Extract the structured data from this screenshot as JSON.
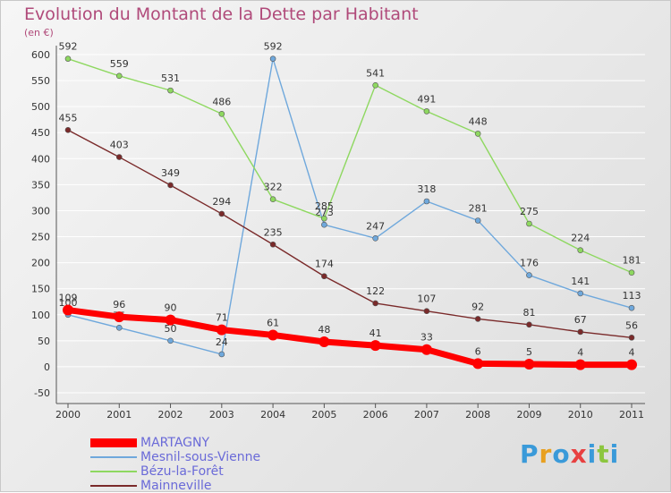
{
  "header": {
    "title": "Evolution du Montant de la Dette par Habitant",
    "unit": "(en €)"
  },
  "brand": {
    "letters": [
      "P",
      "r",
      "o",
      "x",
      "i",
      "t",
      "i"
    ],
    "colors": [
      "#3a9ad9",
      "#e8a020",
      "#3a9ad9",
      "#e84040",
      "#3a9ad9",
      "#8cc63f",
      "#3a9ad9"
    ]
  },
  "chart_data": {
    "type": "line",
    "title": "Evolution du Montant de la Dette par Habitant",
    "ylabel": "(en €)",
    "xlabel": "",
    "x": [
      "2000",
      "2001",
      "2002",
      "2003",
      "2004",
      "2005",
      "2006",
      "2007",
      "2008",
      "2009",
      "2010",
      "2011"
    ],
    "ylim": [
      -50,
      600
    ],
    "yticks": [
      -50,
      0,
      50,
      100,
      150,
      200,
      250,
      300,
      350,
      400,
      450,
      500,
      550,
      600
    ],
    "grid": true,
    "legend_position": "bottom-left",
    "series": [
      {
        "name": "MARTAGNY",
        "color": "#ff0000",
        "values": [
          109,
          96,
          90,
          71,
          61,
          48,
          41,
          33,
          6,
          5,
          4,
          4
        ]
      },
      {
        "name": "Mesnil-sous-Vienne",
        "color": "#6fa8dc",
        "values": [
          100,
          75,
          50,
          24,
          592,
          273,
          247,
          318,
          281,
          176,
          141,
          113
        ],
        "labels": [
          "100",
          "75",
          "50",
          "24",
          "592",
          "273",
          "247",
          "318",
          "281",
          "176",
          "141",
          "113"
        ]
      },
      {
        "name": "Bézu-la-Forêt",
        "color": "#8ed860",
        "values": [
          592,
          559,
          531,
          486,
          322,
          285,
          541,
          491,
          448,
          275,
          224,
          181
        ]
      },
      {
        "name": "Mainneville",
        "color": "#7a2a2a",
        "values": [
          455,
          403,
          349,
          294,
          235,
          174,
          122,
          107,
          92,
          81,
          67,
          56
        ]
      }
    ]
  }
}
